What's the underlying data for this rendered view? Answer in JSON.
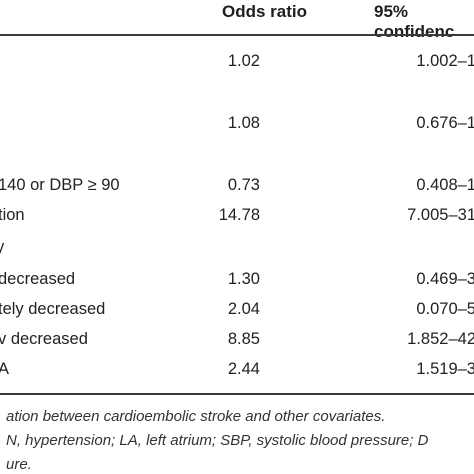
{
  "table": {
    "headers": {
      "odds_ratio": "Odds ratio",
      "ci": "95% confidenc"
    },
    "rows": [
      {
        "label": "",
        "or": "1.02",
        "ci": "1.002–1"
      },
      {
        "label": "",
        "or": "1.08",
        "ci": "0.676–1"
      },
      {
        "label": "140 or DBP ≥ 90",
        "or": "0.73",
        "ci": "0.408–1"
      },
      {
        "label": "tion",
        "or": "14.78",
        "ci": "7.005–31"
      },
      {
        "label": "y",
        "or": "",
        "ci": ""
      },
      {
        "label": "decreased",
        "or": "1.30",
        "ci": "0.469–3"
      },
      {
        "label": "tely decreased",
        "or": "2.04",
        "ci": "0.070–5"
      },
      {
        "label": "v decreased",
        "or": "8.85",
        "ci": "1.852–42"
      },
      {
        "label": "A",
        "or": "2.44",
        "ci": "1.519–3"
      }
    ]
  },
  "footnote": {
    "line1": "ation between cardioembolic stroke and other covariates.",
    "line2": "N, hypertension; LA, left atrium; SBP, systolic blood pressure; D",
    "line3": "ure."
  }
}
